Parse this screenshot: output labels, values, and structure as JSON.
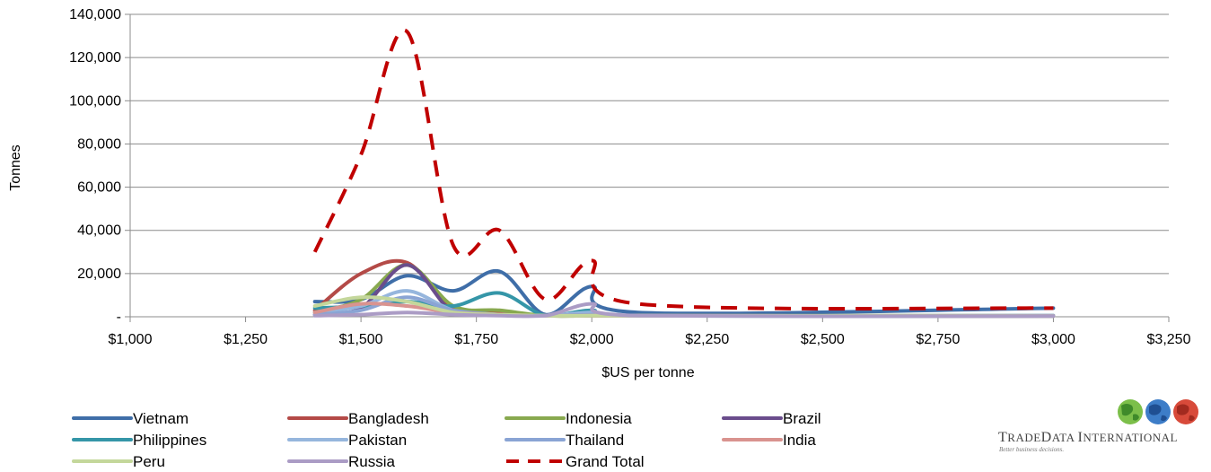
{
  "chart_data": {
    "type": "line",
    "xlabel": "$US per tonne",
    "ylabel": "Tonnes",
    "xlim": [
      1000,
      3250
    ],
    "ylim": [
      0,
      140000
    ],
    "x_ticks": [
      "$1,000",
      "$1,250",
      "$1,500",
      "$1,750",
      "$2,000",
      "$2,250",
      "$2,500",
      "$2,750",
      "$3,000",
      "$3,250"
    ],
    "y_ticks": [
      "-",
      "20,000",
      "40,000",
      "60,000",
      "80,000",
      "100,000",
      "120,000",
      "140,000"
    ],
    "grid": true,
    "legend_position": "bottom",
    "x": [
      1400,
      1500,
      1600,
      1700,
      1800,
      1900,
      2000,
      2100,
      3000
    ],
    "series": [
      {
        "name": "Vietnam",
        "color": "#3f6ea8",
        "dash": false,
        "values": [
          7000,
          8000,
          19000,
          12000,
          21000,
          1000,
          14000,
          2000,
          4000
        ]
      },
      {
        "name": "Bangladesh",
        "color": "#b44a47",
        "dash": false,
        "values": [
          3000,
          20000,
          25000,
          4000,
          2000,
          500,
          500,
          500,
          300
        ]
      },
      {
        "name": "Indonesia",
        "color": "#88a94f",
        "dash": false,
        "values": [
          2000,
          8000,
          24000,
          5000,
          3000,
          500,
          500,
          500,
          500
        ]
      },
      {
        "name": "Brazil",
        "color": "#6a4d8c",
        "dash": false,
        "values": [
          1000,
          4000,
          24000,
          2000,
          1000,
          500,
          500,
          500,
          300
        ]
      },
      {
        "name": "Philippines",
        "color": "#3596a8",
        "dash": false,
        "values": [
          4000,
          5000,
          7000,
          5000,
          11000,
          500,
          3000,
          500,
          300
        ]
      },
      {
        "name": "Pakistan",
        "color": "#96b6dd",
        "dash": false,
        "values": [
          2000,
          5000,
          12000,
          3000,
          1000,
          500,
          2000,
          500,
          500
        ]
      },
      {
        "name": "Thailand",
        "color": "#8aa4d4",
        "dash": false,
        "values": [
          1000,
          3000,
          9000,
          3000,
          1000,
          500,
          1000,
          500,
          500
        ]
      },
      {
        "name": "India",
        "color": "#d9938f",
        "dash": false,
        "values": [
          2000,
          6000,
          5000,
          2000,
          1000,
          500,
          500,
          500,
          300
        ]
      },
      {
        "name": "Peru",
        "color": "#c4d79b",
        "dash": false,
        "values": [
          5000,
          9000,
          7000,
          2000,
          1000,
          500,
          500,
          500,
          300
        ]
      },
      {
        "name": "Russia",
        "color": "#ab9cc5",
        "dash": false,
        "values": [
          500,
          1000,
          2000,
          1000,
          500,
          500,
          6000,
          500,
          300
        ]
      },
      {
        "name": "Grand Total",
        "color": "#c00000",
        "dash": true,
        "values": [
          30000,
          75000,
          132000,
          33000,
          40000,
          8000,
          26000,
          6000,
          4000
        ]
      }
    ]
  },
  "brand": {
    "name": "TradeData International",
    "name_lead": "T",
    "name_part1": "RADE",
    "name_lead2": "D",
    "name_part2": "ATA",
    "name_lead3": "I",
    "name_part3": "NTERNATIONAL",
    "tagline": "Better business decisions."
  }
}
